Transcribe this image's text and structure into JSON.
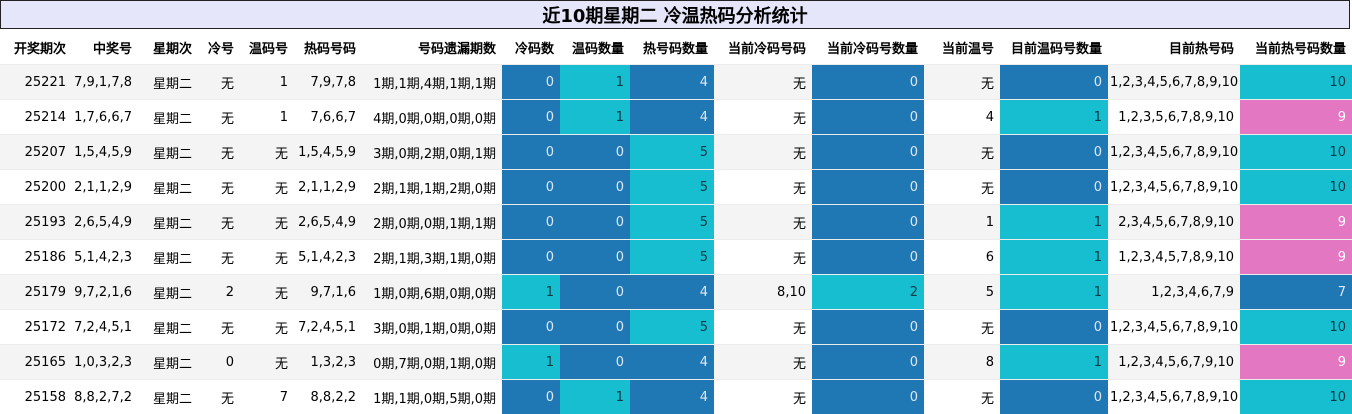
{
  "title": "近10期星期二 冷温热码分析统计",
  "headers": [
    "开奖期次",
    "中奖号",
    "星期次",
    "冷号",
    "温码号",
    "热码号码",
    "号码遗漏期数",
    "冷码数",
    "温码数量",
    "热号码数量",
    "当前冷码号码",
    "当前冷码号数量",
    "当前温号",
    "目前温码号数量",
    "目前热号码",
    "当前热号码数量"
  ],
  "rows": [
    [
      "25221",
      "7,9,1,7,8",
      "星期二",
      "无",
      "1",
      "7,9,7,8",
      "1期,1期,4期,1期,1期",
      "0",
      "1",
      "4",
      "无",
      "0",
      "无",
      "0",
      "1,2,3,4,5,6,7,8,9,10",
      "10"
    ],
    [
      "25214",
      "1,7,6,6,7",
      "星期二",
      "无",
      "1",
      "7,6,6,7",
      "4期,0期,0期,0期,0期",
      "0",
      "1",
      "4",
      "无",
      "0",
      "4",
      "1",
      "1,2,3,5,6,7,8,9,10",
      "9"
    ],
    [
      "25207",
      "1,5,4,5,9",
      "星期二",
      "无",
      "无",
      "1,5,4,5,9",
      "3期,0期,2期,0期,1期",
      "0",
      "0",
      "5",
      "无",
      "0",
      "无",
      "0",
      "1,2,3,4,5,6,7,8,9,10",
      "10"
    ],
    [
      "25200",
      "2,1,1,2,9",
      "星期二",
      "无",
      "无",
      "2,1,1,2,9",
      "2期,1期,1期,2期,0期",
      "0",
      "0",
      "5",
      "无",
      "0",
      "无",
      "0",
      "1,2,3,4,5,6,7,8,9,10",
      "10"
    ],
    [
      "25193",
      "2,6,5,4,9",
      "星期二",
      "无",
      "无",
      "2,6,5,4,9",
      "2期,0期,0期,1期,1期",
      "0",
      "0",
      "5",
      "无",
      "0",
      "1",
      "1",
      "2,3,4,5,6,7,8,9,10",
      "9"
    ],
    [
      "25186",
      "5,1,4,2,3",
      "星期二",
      "无",
      "无",
      "5,1,4,2,3",
      "2期,1期,3期,1期,0期",
      "0",
      "0",
      "5",
      "无",
      "0",
      "6",
      "1",
      "1,2,3,4,5,7,8,9,10",
      "9"
    ],
    [
      "25179",
      "9,7,2,1,6",
      "星期二",
      "2",
      "无",
      "9,7,1,6",
      "1期,0期,6期,0期,0期",
      "1",
      "0",
      "4",
      "8,10",
      "2",
      "5",
      "1",
      "1,2,3,4,6,7,9",
      "7"
    ],
    [
      "25172",
      "7,2,4,5,1",
      "星期二",
      "无",
      "无",
      "7,2,4,5,1",
      "3期,0期,1期,0期,0期",
      "0",
      "0",
      "5",
      "无",
      "0",
      "无",
      "0",
      "1,2,3,4,5,6,7,8,9,10",
      "10"
    ],
    [
      "25165",
      "1,0,3,2,3",
      "星期二",
      "0",
      "无",
      "1,3,2,3",
      "0期,7期,0期,1期,0期",
      "1",
      "0",
      "4",
      "无",
      "0",
      "8",
      "1",
      "1,2,3,4,5,6,7,9,10",
      "9"
    ],
    [
      "25158",
      "8,8,2,7,2",
      "星期二",
      "无",
      "7",
      "8,8,2,2",
      "1期,1期,0期,5期,0期",
      "0",
      "1",
      "4",
      "无",
      "0",
      "无",
      "0",
      "1,2,3,4,5,6,7,8,9,10",
      "10"
    ]
  ],
  "colors": {
    "dark": "#1f77b4",
    "cyan": "#17becf",
    "pink": "#e377c2"
  }
}
